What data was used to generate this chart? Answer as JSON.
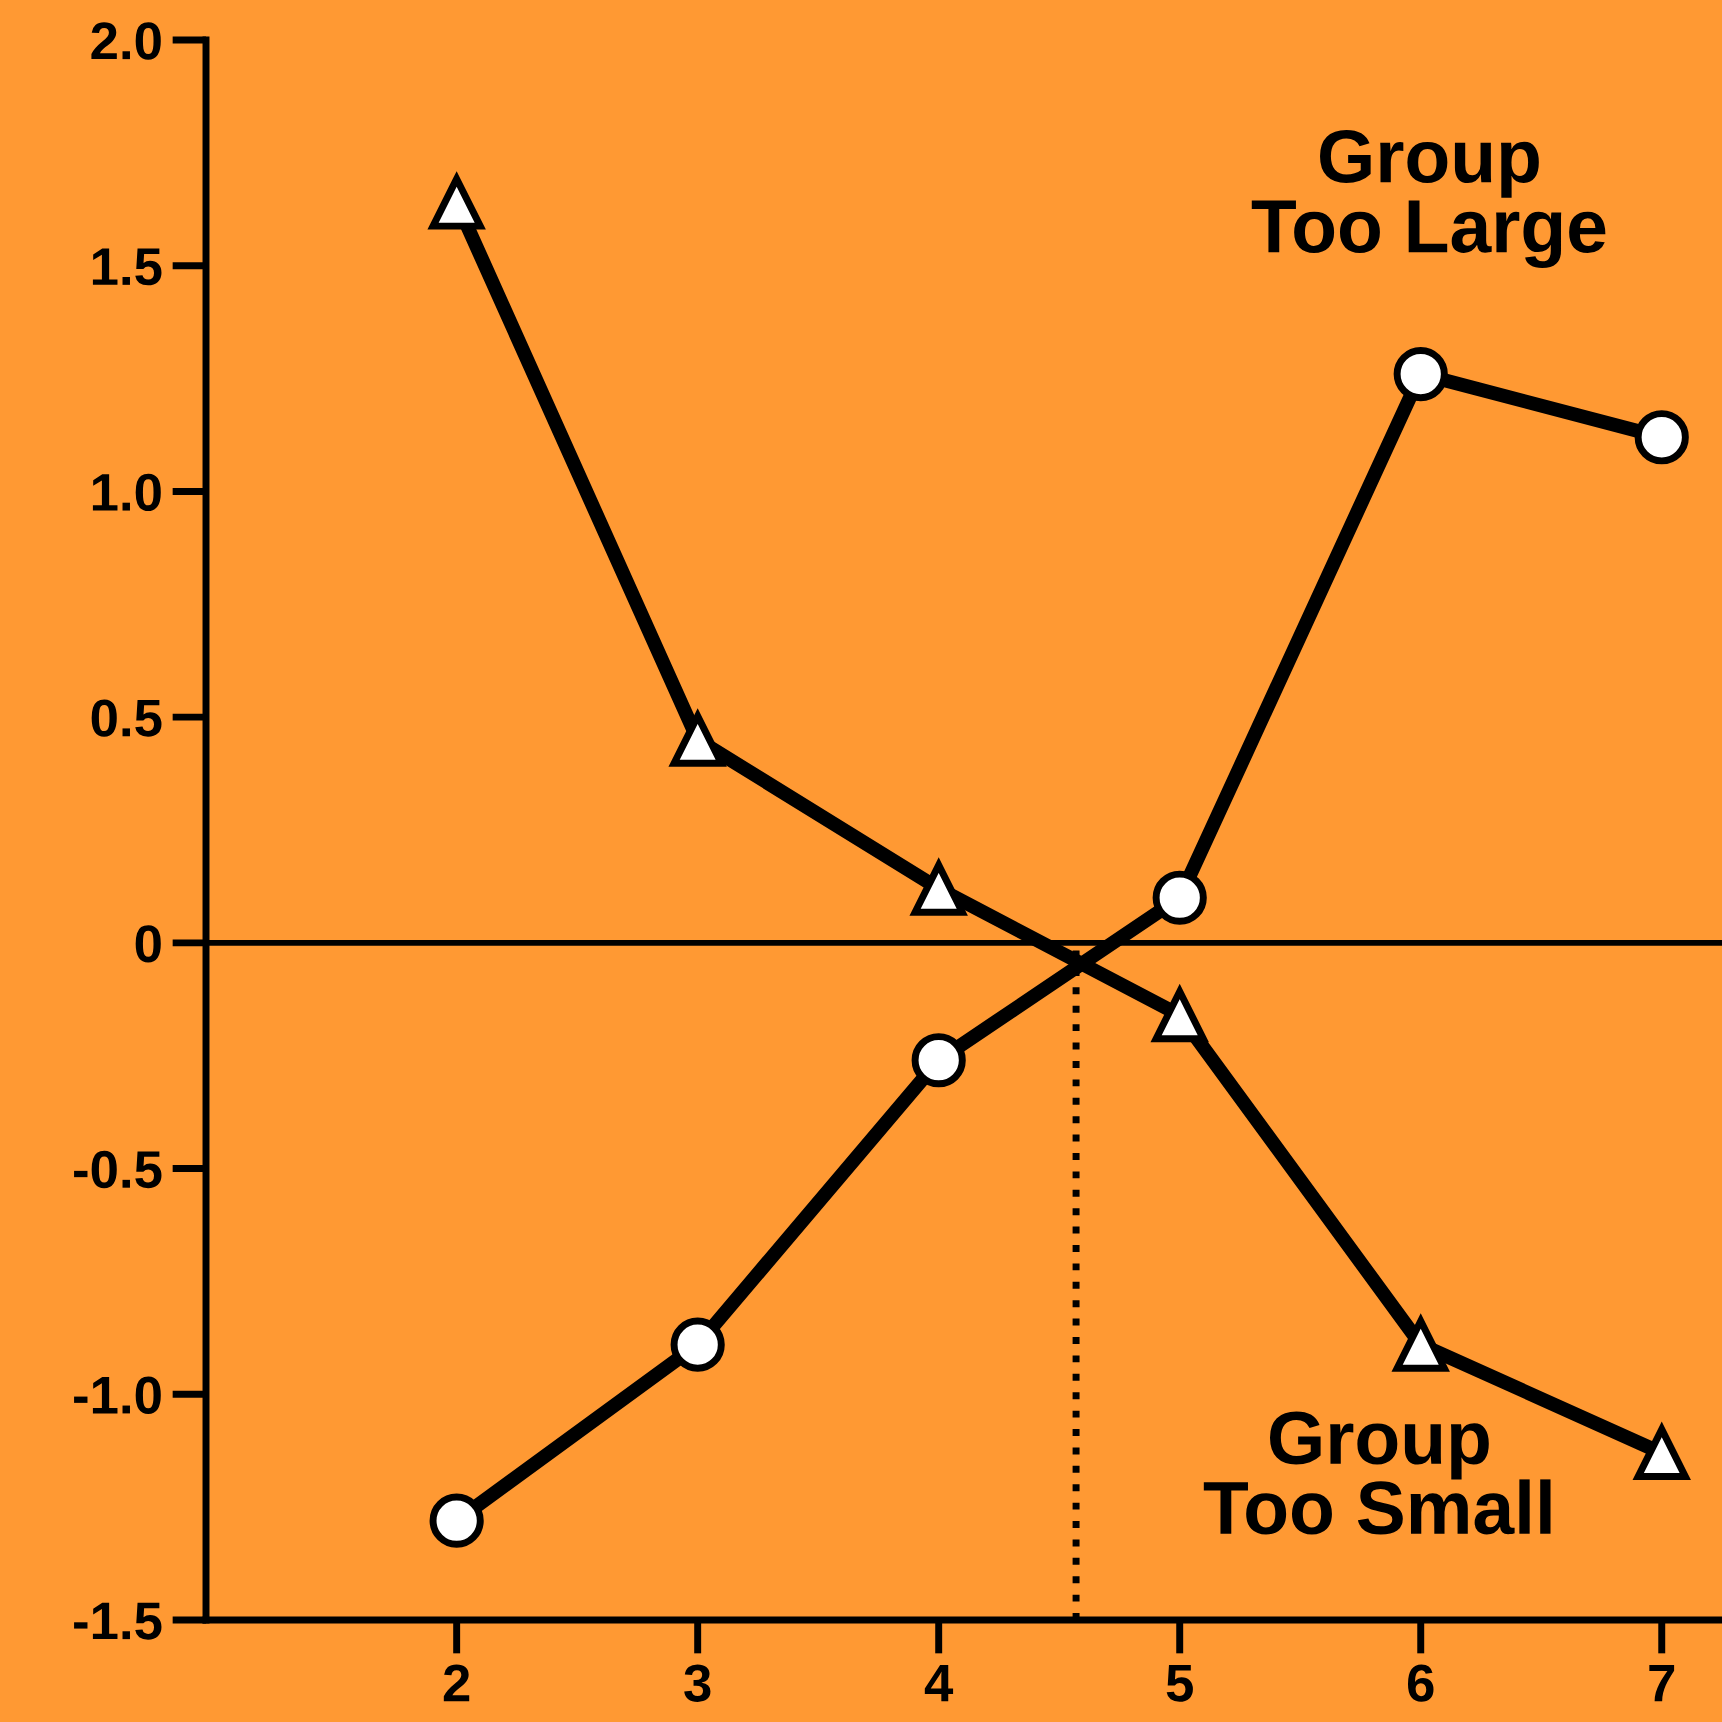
{
  "chart_data": {
    "type": "line",
    "x": [
      2,
      3,
      4,
      5,
      6,
      7
    ],
    "series": [
      {
        "color": "#000000",
        "marker": "triangle",
        "values": [
          1.64,
          0.45,
          0.12,
          -0.16,
          -0.89,
          -1.13
        ]
      },
      {
        "color": "#000000",
        "marker": "circle",
        "values": [
          -1.28,
          -0.89,
          -0.26,
          0.1,
          1.26,
          1.12
        ]
      }
    ],
    "xlim": [
      0.96,
      7.25
    ],
    "xticks": [
      2,
      3,
      4,
      5,
      6,
      7
    ],
    "ylim": [
      -1.5,
      2.0
    ],
    "yticks": [
      {
        "value": -1.5,
        "label": "-1.5"
      },
      {
        "value": -1.0,
        "label": "-1.0"
      },
      {
        "value": -0.5,
        "label": "-0.5"
      },
      {
        "value": 0,
        "label": "0"
      },
      {
        "value": 0.5,
        "label": "0.5"
      },
      {
        "value": 1.0,
        "label": "1.0"
      },
      {
        "value": 1.5,
        "label": "1.5"
      },
      {
        "value": 2.0,
        "label": "2.0"
      }
    ],
    "ref_lines": [
      {
        "axis": "y",
        "value": 0,
        "color": "#000000",
        "line_style": "solid"
      },
      {
        "axis": "x",
        "value": 4.57,
        "color": "#000000",
        "line_style": "dotted"
      }
    ],
    "annotations": [
      "Group\nToo Large",
      "Group\nToo Small"
    ],
    "grid": false,
    "legend": false,
    "line_style": "solid"
  }
}
